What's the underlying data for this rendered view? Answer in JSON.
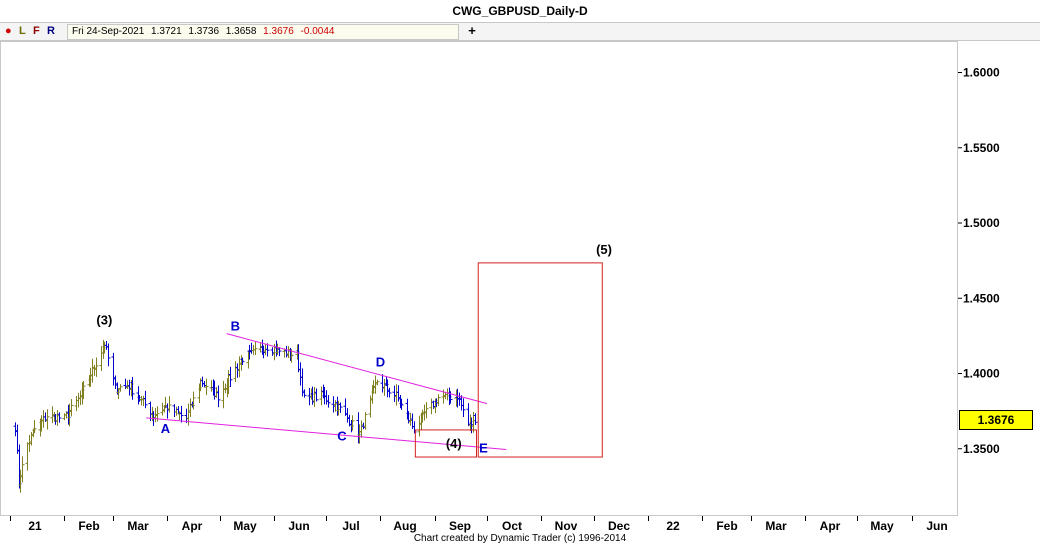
{
  "title": "CWG_GBPUSD_Daily-D",
  "toolbar": {
    "buttons": [
      {
        "label": "●",
        "color": "#d00000"
      },
      {
        "label": "L",
        "color": "#6a6a00"
      },
      {
        "label": "F",
        "color": "#8b0000"
      },
      {
        "label": "R",
        "color": "#000080"
      }
    ],
    "add_label": "+"
  },
  "ohlc": {
    "date": "Fri 24-Sep-2021",
    "open": "1.3721",
    "high": "1.3736",
    "low": "1.3658",
    "close": "1.3676",
    "change": "-0.0044",
    "close_color": "#cc0000",
    "change_color": "#cc0000"
  },
  "credit": "Chart created by Dynamic Trader  (c) 1996-2014",
  "chart_data": {
    "type": "ohlc",
    "instrument": "CWG_GBPUSD_Daily-D",
    "current_price": "1.3676",
    "ylim": [
      1.31,
      1.625
    ],
    "y_ticks": [
      "1.6000",
      "1.5500",
      "1.5000",
      "1.4500",
      "1.4000",
      "1.3500"
    ],
    "x_labels": [
      "21",
      "Feb",
      "Mar",
      "Apr",
      "May",
      "Jun",
      "Jul",
      "Aug",
      "Sep",
      "Oct",
      "Nov",
      "Dec",
      "22",
      "Feb",
      "Mar",
      "Apr",
      "May",
      "Jun"
    ],
    "price_anchors": [
      {
        "date": "2021-01-04",
        "close": 1.365
      },
      {
        "date": "2021-01-06",
        "close": 1.328
      },
      {
        "date": "2021-01-11",
        "close": 1.353
      },
      {
        "date": "2021-01-15",
        "close": 1.363
      },
      {
        "date": "2021-01-22",
        "close": 1.372
      },
      {
        "date": "2021-02-01",
        "close": 1.37
      },
      {
        "date": "2021-02-10",
        "close": 1.384
      },
      {
        "date": "2021-02-24",
        "close": 1.42
      },
      {
        "date": "2021-03-02",
        "close": 1.39
      },
      {
        "date": "2021-03-10",
        "close": 1.392
      },
      {
        "date": "2021-03-24",
        "close": 1.372
      },
      {
        "date": "2021-03-31",
        "close": 1.378
      },
      {
        "date": "2021-04-12",
        "close": 1.37
      },
      {
        "date": "2021-04-20",
        "close": 1.395
      },
      {
        "date": "2021-04-30",
        "close": 1.385
      },
      {
        "date": "2021-05-14",
        "close": 1.41
      },
      {
        "date": "2021-05-28",
        "close": 1.418
      },
      {
        "date": "2021-06-04",
        "close": 1.415
      },
      {
        "date": "2021-06-14",
        "close": 1.412
      },
      {
        "date": "2021-06-18",
        "close": 1.383
      },
      {
        "date": "2021-06-28",
        "close": 1.385
      },
      {
        "date": "2021-07-08",
        "close": 1.378
      },
      {
        "date": "2021-07-20",
        "close": 1.36
      },
      {
        "date": "2021-07-30",
        "close": 1.395
      },
      {
        "date": "2021-08-10",
        "close": 1.385
      },
      {
        "date": "2021-08-20",
        "close": 1.363
      },
      {
        "date": "2021-08-26",
        "close": 1.373
      },
      {
        "date": "2021-09-03",
        "close": 1.384
      },
      {
        "date": "2021-09-14",
        "close": 1.385
      },
      {
        "date": "2021-09-20",
        "close": 1.366
      },
      {
        "date": "2021-09-24",
        "close": 1.3676
      }
    ],
    "trendlines": [
      {
        "from": {
          "date": "2021-05-05",
          "price": 1.4265
        },
        "to": {
          "date": "2021-10-01",
          "price": 1.38
        },
        "color": "#e020e0"
      },
      {
        "from": {
          "date": "2021-03-20",
          "price": 1.3705
        },
        "to": {
          "date": "2021-10-12",
          "price": 1.3495
        },
        "color": "#e020e0"
      }
    ],
    "boxes": [
      {
        "from": {
          "date": "2021-08-21",
          "price": 1.3625
        },
        "to": {
          "date": "2021-09-25",
          "price": 1.3445
        },
        "color": "#d42020"
      },
      {
        "from": {
          "date": "2021-09-26",
          "price": 1.4735
        },
        "to": {
          "date": "2021-12-06",
          "price": 1.3445
        },
        "color": "#d42020"
      }
    ],
    "annotations": [
      {
        "text": "(3)",
        "date": "2021-02-24",
        "price": 1.4325,
        "color": "#000000"
      },
      {
        "text": "A",
        "date": "2021-03-31",
        "price": 1.3605,
        "color": "#0000cc"
      },
      {
        "text": "B",
        "date": "2021-05-10",
        "price": 1.4285,
        "color": "#0000cc"
      },
      {
        "text": "C",
        "date": "2021-07-10",
        "price": 1.3555,
        "color": "#0000cc"
      },
      {
        "text": "D",
        "date": "2021-08-01",
        "price": 1.4045,
        "color": "#0000cc"
      },
      {
        "text": "(4)",
        "date": "2021-09-12",
        "price": 1.3505,
        "color": "#000000"
      },
      {
        "text": "E",
        "date": "2021-09-29",
        "price": 1.3475,
        "color": "#0000cc"
      },
      {
        "text": "(5)",
        "date": "2021-12-07",
        "price": 1.4795,
        "color": "#000000"
      }
    ],
    "bar_up_color": "#808020",
    "bar_down_color": "#0000cc",
    "grid": false
  }
}
